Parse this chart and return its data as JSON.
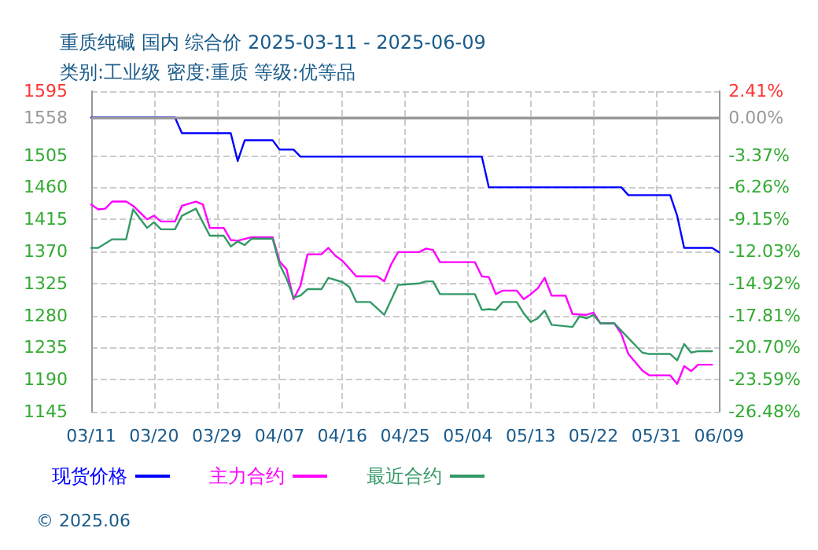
{
  "chart_data": {
    "type": "line",
    "title": "重质纯碱 国内 综合价 2025-03-11 - 2025-06-09",
    "subtitle": "类别:工业级 密度:重质 等级:优等品",
    "annotations": [
      "© 2025.06"
    ],
    "xlim": [
      "2025-03-11",
      "2025-06-09"
    ],
    "xticks": [
      {
        "value": "2025-03-11",
        "label": "03/11"
      },
      {
        "value": "2025-03-20",
        "label": "03/20"
      },
      {
        "value": "2025-03-29",
        "label": "03/29"
      },
      {
        "value": "2025-04-07",
        "label": "04/07"
      },
      {
        "value": "2025-04-16",
        "label": "04/16"
      },
      {
        "value": "2025-04-25",
        "label": "04/25"
      },
      {
        "value": "2025-05-04",
        "label": "05/04"
      },
      {
        "value": "2025-05-13",
        "label": "05/13"
      },
      {
        "value": "2025-05-22",
        "label": "05/22"
      },
      {
        "value": "2025-05-31",
        "label": "05/31"
      },
      {
        "value": "2025-06-09",
        "label": "06/09"
      }
    ],
    "ylim": [
      1145,
      1595
    ],
    "yticks": [
      1595,
      1558,
      1505,
      1460,
      1415,
      1370,
      1325,
      1280,
      1235,
      1190,
      1145
    ],
    "y2lim": [
      -26.48,
      2.41
    ],
    "y2ticks": [
      {
        "value": 2.41,
        "label": "2.41%"
      },
      {
        "value": 0,
        "label": "0.00%"
      },
      {
        "value": -3.37,
        "label": "-3.37%"
      },
      {
        "value": -6.26,
        "label": "-6.26%"
      },
      {
        "value": -9.15,
        "label": "-9.15%"
      },
      {
        "value": -12.03,
        "label": "-12.03%"
      },
      {
        "value": -14.92,
        "label": "-14.92%"
      },
      {
        "value": -17.81,
        "label": "-17.81%"
      },
      {
        "value": -20.7,
        "label": "-20.70%"
      },
      {
        "value": -23.59,
        "label": "-23.59%"
      },
      {
        "value": -26.48,
        "label": "-26.48%"
      }
    ],
    "ref_lines": [
      {
        "axis": "y",
        "value": 1558,
        "label": null,
        "color": "#999999",
        "line_style": "solid"
      }
    ],
    "grid": true,
    "legend": "bottom",
    "marker": "none",
    "line_style": "solid",
    "series": [
      {
        "name": "现货价格",
        "color": "#0000ff",
        "x": [
          "2025-03-11",
          "2025-03-23",
          "2025-03-24",
          "2025-03-31",
          "2025-04-01",
          "2025-04-02",
          "2025-04-06",
          "2025-04-07",
          "2025-04-09",
          "2025-04-10",
          "2025-05-06",
          "2025-05-07",
          "2025-05-26",
          "2025-05-27",
          "2025-06-02",
          "2025-06-03",
          "2025-06-04",
          "2025-06-08",
          "2025-06-09"
        ],
        "values": [
          1558,
          1558,
          1536,
          1536,
          1497,
          1526,
          1526,
          1513,
          1513,
          1503,
          1503,
          1460,
          1460,
          1449,
          1449,
          1420,
          1375,
          1375,
          1369
        ]
      },
      {
        "name": "主力合约",
        "color": "#ff00ff",
        "x": [
          "2025-03-11",
          "2025-03-12",
          "2025-03-13",
          "2025-03-14",
          "2025-03-16",
          "2025-03-17",
          "2025-03-19",
          "2025-03-20",
          "2025-03-21",
          "2025-03-23",
          "2025-03-24",
          "2025-03-26",
          "2025-03-27",
          "2025-03-28",
          "2025-03-30",
          "2025-03-31",
          "2025-04-01",
          "2025-04-03",
          "2025-04-06",
          "2025-04-07",
          "2025-04-08",
          "2025-04-09",
          "2025-04-10",
          "2025-04-11",
          "2025-04-13",
          "2025-04-14",
          "2025-04-15",
          "2025-04-16",
          "2025-04-18",
          "2025-04-21",
          "2025-04-22",
          "2025-04-23",
          "2025-04-24",
          "2025-04-27",
          "2025-04-28",
          "2025-04-29",
          "2025-04-30",
          "2025-05-05",
          "2025-05-06",
          "2025-05-07",
          "2025-05-08",
          "2025-05-09",
          "2025-05-11",
          "2025-05-12",
          "2025-05-13",
          "2025-05-14",
          "2025-05-15",
          "2025-05-16",
          "2025-05-18",
          "2025-05-19",
          "2025-05-21",
          "2025-05-22",
          "2025-05-23",
          "2025-05-25",
          "2025-05-26",
          "2025-05-27",
          "2025-05-29",
          "2025-05-30",
          "2025-06-02",
          "2025-06-03",
          "2025-06-04",
          "2025-06-05",
          "2025-06-06",
          "2025-06-08"
        ],
        "values": [
          1436,
          1429,
          1430,
          1440,
          1440,
          1434,
          1415,
          1420,
          1412,
          1412,
          1434,
          1440,
          1436,
          1403,
          1403,
          1386,
          1385,
          1390,
          1390,
          1356,
          1345,
          1303,
          1322,
          1366,
          1366,
          1375,
          1364,
          1357,
          1335,
          1335,
          1328,
          1352,
          1369,
          1369,
          1374,
          1372,
          1355,
          1355,
          1335,
          1334,
          1310,
          1315,
          1315,
          1303,
          1310,
          1318,
          1333,
          1308,
          1308,
          1282,
          1281,
          1284,
          1269,
          1269,
          1254,
          1226,
          1203,
          1196,
          1196,
          1184,
          1209,
          1202,
          1211,
          1211
        ]
      },
      {
        "name": "最近合约",
        "color": "#339966",
        "x": [
          "2025-03-11",
          "2025-03-12",
          "2025-03-14",
          "2025-03-16",
          "2025-03-17",
          "2025-03-19",
          "2025-03-20",
          "2025-03-21",
          "2025-03-23",
          "2025-03-24",
          "2025-03-26",
          "2025-03-28",
          "2025-03-30",
          "2025-03-31",
          "2025-04-01",
          "2025-04-02",
          "2025-04-03",
          "2025-04-06",
          "2025-04-07",
          "2025-04-08",
          "2025-04-09",
          "2025-04-10",
          "2025-04-11",
          "2025-04-13",
          "2025-04-14",
          "2025-04-16",
          "2025-04-17",
          "2025-04-18",
          "2025-04-20",
          "2025-04-22",
          "2025-04-24",
          "2025-04-27",
          "2025-04-28",
          "2025-04-29",
          "2025-04-30",
          "2025-05-05",
          "2025-05-06",
          "2025-05-07",
          "2025-05-08",
          "2025-05-09",
          "2025-05-11",
          "2025-05-12",
          "2025-05-13",
          "2025-05-14",
          "2025-05-15",
          "2025-05-16",
          "2025-05-19",
          "2025-05-20",
          "2025-05-21",
          "2025-05-22",
          "2025-05-23",
          "2025-05-25",
          "2025-05-29",
          "2025-05-30",
          "2025-06-02",
          "2025-06-03",
          "2025-06-04",
          "2025-06-05",
          "2025-06-06",
          "2025-06-08"
        ],
        "values": [
          1375,
          1375,
          1387,
          1387,
          1429,
          1403,
          1411,
          1401,
          1401,
          1420,
          1430,
          1392,
          1392,
          1377,
          1384,
          1379,
          1388,
          1388,
          1352,
          1332,
          1305,
          1308,
          1317,
          1317,
          1333,
          1327,
          1320,
          1299,
          1299,
          1281,
          1323,
          1325,
          1328,
          1328,
          1310,
          1310,
          1288,
          1289,
          1288,
          1299,
          1299,
          1283,
          1271,
          1276,
          1287,
          1267,
          1264,
          1279,
          1276,
          1281,
          1269,
          1269,
          1228,
          1226,
          1226,
          1217,
          1240,
          1228,
          1230,
          1230
        ]
      }
    ]
  }
}
